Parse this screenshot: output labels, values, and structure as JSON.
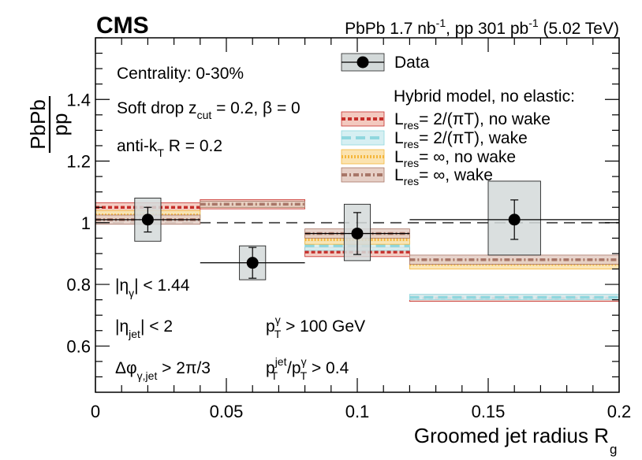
{
  "chart_data": {
    "type": "scatter",
    "experiment": "CMS",
    "header": {
      "pbpb_prefix": "PbPb 1.7 nb",
      "pbpb_exp": "-1",
      "pp_prefix": ", pp 301 pb",
      "pp_exp": "-1",
      "energy": " (5.02 TeV)"
    },
    "xlabel": {
      "main": "Groomed jet radius R",
      "sub": "g"
    },
    "ylabel": {
      "num": "PbPb",
      "den": "pp"
    },
    "xlim": [
      0,
      0.2
    ],
    "ylim": [
      0.45,
      1.6
    ],
    "xticks": [
      {
        "v": 0,
        "label": "0"
      },
      {
        "v": 0.05,
        "label": "0.05"
      },
      {
        "v": 0.1,
        "label": "0.1"
      },
      {
        "v": 0.15,
        "label": "0.15"
      },
      {
        "v": 0.2,
        "label": "0.2"
      }
    ],
    "yticks": [
      {
        "v": 0.6,
        "label": "0.6"
      },
      {
        "v": 0.8,
        "label": "0.8"
      },
      {
        "v": 1.0,
        "label": "1"
      },
      {
        "v": 1.2,
        "label": "1.2"
      },
      {
        "v": 1.4,
        "label": "1.4"
      }
    ],
    "reference_line": 1.0,
    "data": [
      {
        "x_lo": 0.0,
        "x_hi": 0.04,
        "x": 0.02,
        "y": 1.01,
        "stat": 0.04,
        "sys_lo": 0.94,
        "sys_hi": 1.08,
        "sys_halfwidth": 0.005
      },
      {
        "x_lo": 0.04,
        "x_hi": 0.08,
        "x": 0.06,
        "y": 0.87,
        "stat": 0.05,
        "sys_lo": 0.815,
        "sys_hi": 0.925,
        "sys_halfwidth": 0.005
      },
      {
        "x_lo": 0.08,
        "x_hi": 0.12,
        "x": 0.1,
        "y": 0.965,
        "stat": 0.068,
        "sys_lo": 0.877,
        "sys_hi": 1.06,
        "sys_halfwidth": 0.005
      },
      {
        "x_lo": 0.12,
        "x_hi": 0.2,
        "x": 0.16,
        "y": 1.01,
        "stat": 0.064,
        "sys_lo": 0.895,
        "sys_hi": 1.135,
        "sys_halfwidth": 0.01
      }
    ],
    "models": [
      {
        "key": "res_nowake",
        "label_pre": "L",
        "label_sub": "res",
        "label_post": "= 2/(πT), no wake",
        "color": "#c62f2b",
        "fill": "#f3c9bf",
        "pattern": "sq",
        "bins": [
          {
            "x_lo": 0.0,
            "x_hi": 0.04,
            "y": 1.05,
            "lo": 1.035,
            "hi": 1.065
          },
          {
            "x_lo": 0.04,
            "x_hi": 0.08,
            "y": 1.06,
            "lo": 1.045,
            "hi": 1.075
          },
          {
            "x_lo": 0.08,
            "x_hi": 0.12,
            "y": 0.905,
            "lo": 0.89,
            "hi": 0.92
          },
          {
            "x_lo": 0.12,
            "x_hi": 0.2,
            "y": 0.755,
            "lo": 0.745,
            "hi": 0.765
          }
        ]
      },
      {
        "key": "res_wake",
        "label_pre": "L",
        "label_sub": "res",
        "label_post": "= 2/(πT), wake",
        "color": "#8fd7de",
        "fill": "#d6eff2",
        "pattern": "dash",
        "bins": [
          {
            "x_lo": 0.0,
            "x_hi": 0.04,
            "y": 1.02,
            "lo": 1.005,
            "hi": 1.035
          },
          {
            "x_lo": 0.04,
            "x_hi": 0.08,
            "y": 1.06,
            "lo": 1.05,
            "hi": 1.07
          },
          {
            "x_lo": 0.08,
            "x_hi": 0.12,
            "y": 0.925,
            "lo": 0.91,
            "hi": 0.94
          },
          {
            "x_lo": 0.12,
            "x_hi": 0.2,
            "y": 0.758,
            "lo": 0.75,
            "hi": 0.768
          }
        ]
      },
      {
        "key": "inf_nowake",
        "label_pre": "L",
        "label_sub": "res",
        "label_post": "= ∞, no wake",
        "color": "#f4b63b",
        "fill": "#fbe3b0",
        "pattern": "dot",
        "bins": [
          {
            "x_lo": 0.0,
            "x_hi": 0.04,
            "y": 1.025,
            "lo": 1.01,
            "hi": 1.04
          },
          {
            "x_lo": 0.04,
            "x_hi": 0.08,
            "y": 1.06,
            "lo": 1.05,
            "hi": 1.07
          },
          {
            "x_lo": 0.08,
            "x_hi": 0.12,
            "y": 0.945,
            "lo": 0.93,
            "hi": 0.96
          },
          {
            "x_lo": 0.12,
            "x_hi": 0.2,
            "y": 0.865,
            "lo": 0.85,
            "hi": 0.88
          }
        ]
      },
      {
        "key": "inf_wake",
        "label_pre": "L",
        "label_sub": "res",
        "label_post": "= ∞, wake",
        "color": "#a87668",
        "fill": "#e6cfc6",
        "pattern": "dashdot",
        "bins": [
          {
            "x_lo": 0.0,
            "x_hi": 0.04,
            "y": 1.01,
            "lo": 0.995,
            "hi": 1.025
          },
          {
            "x_lo": 0.04,
            "x_hi": 0.08,
            "y": 1.06,
            "lo": 1.05,
            "hi": 1.07
          },
          {
            "x_lo": 0.08,
            "x_hi": 0.12,
            "y": 0.965,
            "lo": 0.95,
            "hi": 0.98
          },
          {
            "x_lo": 0.12,
            "x_hi": 0.2,
            "y": 0.88,
            "lo": 0.865,
            "hi": 0.895
          }
        ]
      }
    ],
    "legend": {
      "data_label": "Data",
      "model_header": "Hybrid model, no elastic:"
    },
    "annotations": {
      "centrality": "Centrality: 0-30%",
      "softdrop": {
        "pre": "Soft drop z",
        "sub": "cut",
        "post": " = 0.2, β = 0"
      },
      "antikt": {
        "pre": "anti-k",
        "sub": "T",
        "post": " R = 0.2"
      },
      "eta_gamma": {
        "pre": "|η",
        "sub": "γ",
        "post": "| < 1.44"
      },
      "eta_jet": {
        "pre": "|η",
        "sub": "jet",
        "post": "| < 2"
      },
      "dphi": {
        "pre": "Δφ",
        "sub": "γ,jet",
        "post": " > 2π/3"
      },
      "ptgamma": {
        "pre": "p",
        "sup": "γ",
        "sub": "T",
        "post": " > 100 GeV"
      },
      "ptratio": {
        "pre": "p",
        "sup1": "jet",
        "sub1": "T",
        "mid": "/p",
        "sup2": "γ",
        "sub2": "T",
        "post": " > 0.4"
      }
    }
  }
}
